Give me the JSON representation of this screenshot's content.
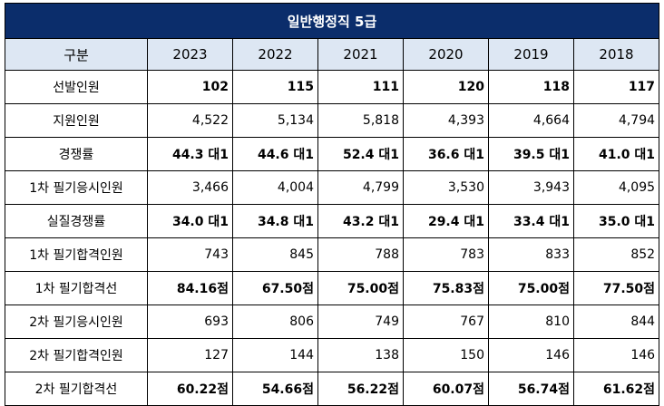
{
  "title": "일반행정직 5급",
  "header": {
    "label": "구분",
    "years": [
      "2023",
      "2022",
      "2021",
      "2020",
      "2019",
      "2018"
    ]
  },
  "rows": [
    {
      "label": "선발인원",
      "style": "bold",
      "values": [
        "102",
        "115",
        "111",
        "120",
        "118",
        "117"
      ]
    },
    {
      "label": "지원인원",
      "style": "normal",
      "values": [
        "4,522",
        "5,134",
        "5,818",
        "4,393",
        "4,664",
        "4,794"
      ]
    },
    {
      "label": "경쟁률",
      "style": "bold",
      "values": [
        "44.3 대1",
        "44.6 대1",
        "52.4 대1",
        "36.6 대1",
        "39.5 대1",
        "41.0 대1"
      ]
    },
    {
      "label": "1차 필기응시인원",
      "style": "normal",
      "values": [
        "3,466",
        "4,004",
        "4,799",
        "3,530",
        "3,943",
        "4,095"
      ]
    },
    {
      "label": "실질경쟁률",
      "style": "bold",
      "values": [
        "34.0 대1",
        "34.8 대1",
        "43.2 대1",
        "29.4 대1",
        "33.4 대1",
        "35.0 대1"
      ]
    },
    {
      "label": "1차 필기합격인원",
      "style": "normal",
      "values": [
        "743",
        "845",
        "788",
        "783",
        "833",
        "852"
      ]
    },
    {
      "label": "1차 필기합격선",
      "style": "blue",
      "values": [
        "84.16점",
        "67.50점",
        "75.00점",
        "75.83점",
        "75.00점",
        "77.50점"
      ]
    },
    {
      "label": "2차 필기응시인원",
      "style": "normal",
      "values": [
        "693",
        "806",
        "749",
        "767",
        "810",
        "844"
      ]
    },
    {
      "label": "2차 필기합격인원",
      "style": "normal",
      "values": [
        "127",
        "144",
        "138",
        "150",
        "146",
        "146"
      ]
    },
    {
      "label": "2차 필기합격선",
      "style": "blue",
      "values": [
        "60.22점",
        "54.66점",
        "56.22점",
        "60.07점",
        "56.74점",
        "61.62점"
      ]
    }
  ],
  "colors": {
    "title_bg": "#0b2d6b",
    "header_bg": "#dde7f3",
    "highlight": "#1c75bc"
  }
}
